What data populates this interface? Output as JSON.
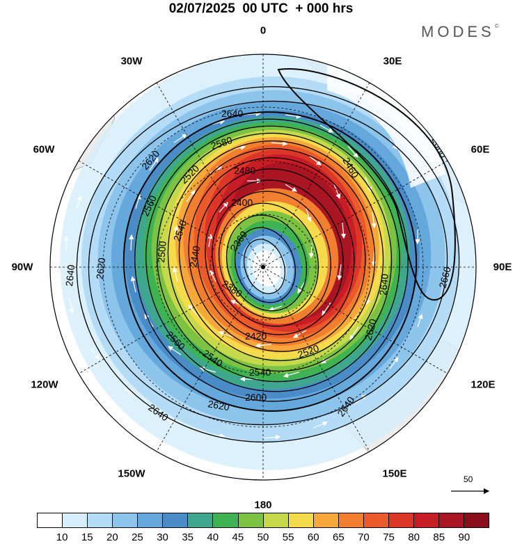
{
  "title": "02/07/2025  00 UTC  + 000 hrs",
  "brand": "MODES",
  "brand_mark": "©",
  "longitude_labels": {
    "n0": "0",
    "e30": "30E",
    "e60": "60E",
    "e90": "90E",
    "e120": "120E",
    "e150": "150E",
    "s180": "180",
    "w150": "150W",
    "w120": "120W",
    "w90": "90W",
    "w60": "60W",
    "w30": "30W"
  },
  "vector_scale": {
    "label": "50"
  },
  "contour_labels": [
    "2640",
    "2620",
    "2580",
    "2560",
    "2520",
    "2500",
    "2480",
    "2460",
    "2440",
    "2420",
    "2400",
    "2380",
    "2360",
    "2540",
    "2600",
    "2660"
  ],
  "colorbar": {
    "colors": [
      "#ffffff",
      "#d6eefc",
      "#b4dcf7",
      "#8cc4ec",
      "#64a8dc",
      "#4a8cc8",
      "#3fa78e",
      "#3fb351",
      "#7cc243",
      "#c5d94a",
      "#f5db4b",
      "#f6a83b",
      "#f27f2f",
      "#ea5a2a",
      "#dc3628",
      "#c81d24",
      "#a91522",
      "#8b0e1d"
    ],
    "tick_labels": [
      "10",
      "15",
      "20",
      "25",
      "30",
      "35",
      "40",
      "45",
      "50",
      "55",
      "60",
      "65",
      "70",
      "75",
      "80",
      "85",
      "90"
    ]
  },
  "colors": {
    "land": "#ececec",
    "background": "#ffffff"
  }
}
